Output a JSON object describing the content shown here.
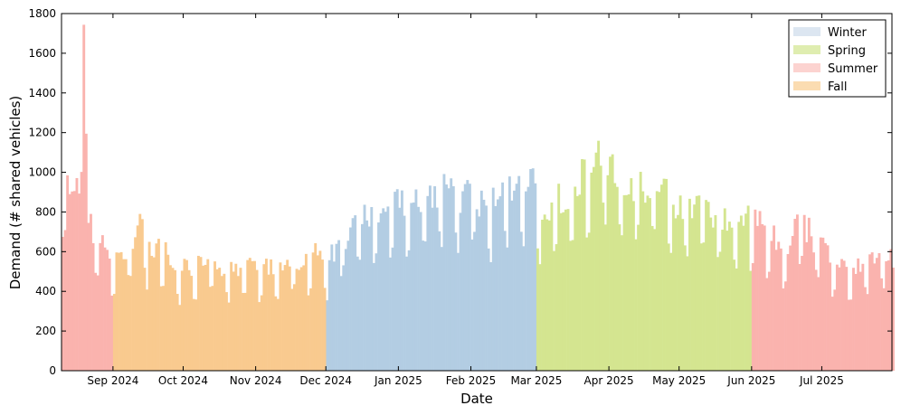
{
  "chart_data": {
    "type": "area",
    "title": "",
    "xlabel": "Date",
    "ylabel": "Demand (# shared vehicles)",
    "ylim": [
      0,
      1800
    ],
    "yticks": [
      0,
      200,
      400,
      600,
      800,
      1000,
      1200,
      1400,
      1600,
      1800
    ],
    "xlim": [
      "2024-08-10",
      "2025-07-31"
    ],
    "xticks": [
      {
        "date": "2024-09-01",
        "label": "Sep 2024"
      },
      {
        "date": "2024-10-01",
        "label": "Oct 2024"
      },
      {
        "date": "2024-11-01",
        "label": "Nov 2024"
      },
      {
        "date": "2024-12-01",
        "label": "Dec 2024"
      },
      {
        "date": "2025-01-01",
        "label": "Jan 2025"
      },
      {
        "date": "2025-02-01",
        "label": "Feb 2025"
      },
      {
        "date": "2025-03-01",
        "label": "Mar 2025"
      },
      {
        "date": "2025-04-01",
        "label": "Apr 2025"
      },
      {
        "date": "2025-05-01",
        "label": "May 2025"
      },
      {
        "date": "2025-06-01",
        "label": "Jun 2025"
      },
      {
        "date": "2025-07-01",
        "label": "Jul 2025"
      }
    ],
    "grid": false,
    "legend_position": "top-right",
    "series": [
      {
        "name": "Winter",
        "color": "#b3cde3",
        "legend_color": "#dce6f1",
        "x": [
          "2024-12-01",
          "2024-12-08",
          "2024-12-15",
          "2024-12-22",
          "2024-12-29",
          "2025-01-05",
          "2025-01-12",
          "2025-01-19",
          "2025-01-26",
          "2025-02-02",
          "2025-02-09",
          "2025-02-16",
          "2025-02-23",
          "2025-02-28"
        ],
        "y": [
          560,
          700,
          760,
          830,
          850,
          880,
          900,
          930,
          920,
          900,
          880,
          920,
          930,
          950
        ]
      },
      {
        "name": "Spring",
        "color": "#d4e590",
        "legend_color": "#dfedb0",
        "x": [
          "2025-03-01",
          "2025-03-08",
          "2025-03-15",
          "2025-03-22",
          "2025-03-29",
          "2025-04-05",
          "2025-04-12",
          "2025-04-19",
          "2025-04-26",
          "2025-05-03",
          "2025-05-10",
          "2025-05-17",
          "2025-05-24",
          "2025-05-31"
        ],
        "y": [
          800,
          880,
          950,
          1040,
          1100,
          1000,
          960,
          980,
          900,
          860,
          840,
          830,
          800,
          780
        ]
      },
      {
        "name": "Summer",
        "color": "#fab3ae",
        "legend_color": "#fcd3d0",
        "x": [
          "2024-08-10",
          "2024-08-13",
          "2024-08-16",
          "2024-08-18",
          "2024-08-19",
          "2024-08-21",
          "2024-08-24",
          "2024-08-27",
          "2024-08-31",
          "2025-06-01",
          "2025-06-08",
          "2025-06-15",
          "2025-06-22",
          "2025-06-29",
          "2025-07-06",
          "2025-07-13",
          "2025-07-20",
          "2025-07-27",
          "2025-07-31"
        ],
        "y": [
          920,
          950,
          900,
          1400,
          1680,
          800,
          650,
          660,
          600,
          780,
          700,
          650,
          780,
          650,
          580,
          520,
          560,
          620,
          560
        ]
      },
      {
        "name": "Fall",
        "color": "#f9ca8f",
        "legend_color": "#fbdcb1",
        "x": [
          "2024-09-01",
          "2024-09-08",
          "2024-09-12",
          "2024-09-15",
          "2024-09-22",
          "2024-09-29",
          "2024-10-06",
          "2024-10-13",
          "2024-10-20",
          "2024-10-27",
          "2024-11-03",
          "2024-11-10",
          "2024-11-17",
          "2024-11-24",
          "2024-11-30"
        ],
        "y": [
          620,
          640,
          820,
          600,
          650,
          520,
          560,
          560,
          540,
          520,
          560,
          560,
          570,
          590,
          610
        ]
      }
    ]
  }
}
